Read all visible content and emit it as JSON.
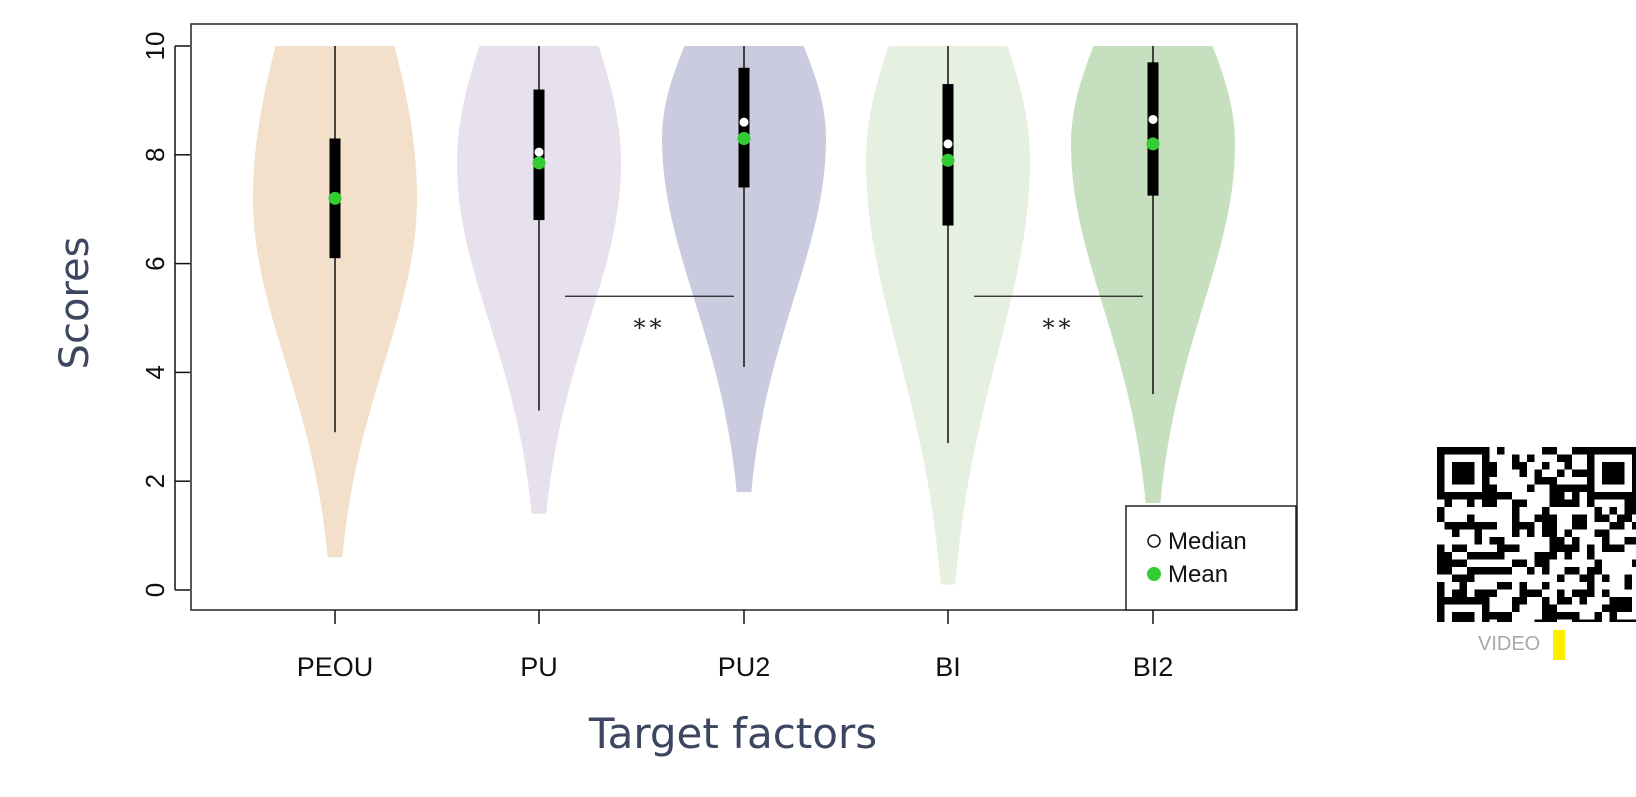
{
  "chart_data": {
    "type": "violin",
    "xlabel": "Target factors",
    "ylabel": "Scores",
    "ylim": [
      0,
      10
    ],
    "yticks": [
      0,
      2,
      4,
      6,
      8,
      10
    ],
    "categories": [
      "PEOU",
      "PU",
      "PU2",
      "BI",
      "BI2"
    ],
    "series": [
      {
        "category": "PEOU",
        "color": "#f2e0cb",
        "min": 0.6,
        "max": 10,
        "whisker_low": 2.9,
        "q1": 6.1,
        "median": 7.2,
        "mean": 7.2,
        "q3": 8.3
      },
      {
        "category": "PU",
        "color": "#e6e1ec",
        "min": 1.4,
        "max": 10,
        "whisker_low": 3.3,
        "q1": 6.8,
        "median": 8.05,
        "mean": 7.85,
        "q3": 9.2
      },
      {
        "category": "PU2",
        "color": "#cbcbdf",
        "min": 1.8,
        "max": 10,
        "whisker_low": 4.1,
        "q1": 7.4,
        "median": 8.6,
        "mean": 8.3,
        "q3": 9.6
      },
      {
        "category": "BI",
        "color": "#e6f0e0",
        "min": 0.1,
        "max": 10,
        "whisker_low": 2.7,
        "q1": 6.7,
        "median": 8.2,
        "mean": 7.9,
        "q3": 9.3
      },
      {
        "category": "BI2",
        "color": "#c6e0bf",
        "min": 1.6,
        "max": 10,
        "whisker_low": 3.6,
        "q1": 7.25,
        "median": 8.65,
        "mean": 8.2,
        "q3": 9.7
      }
    ],
    "significance": [
      {
        "from": "PU",
        "to": "PU2",
        "label": "**",
        "level": 5.4
      },
      {
        "from": "BI",
        "to": "BI2",
        "label": "**",
        "level": 5.4
      }
    ],
    "legend": {
      "position": "bottom-right",
      "entries": [
        {
          "label": "Median",
          "marker": "open-circle",
          "color": "#ffffff"
        },
        {
          "label": "Mean",
          "marker": "filled-circle",
          "color": "#33cc33"
        }
      ]
    }
  },
  "video_label": "VIDEO",
  "colors": {
    "mean": "#33cc33",
    "median": "#ffffff",
    "box": "#000000",
    "axis_title": "#3d4660"
  }
}
